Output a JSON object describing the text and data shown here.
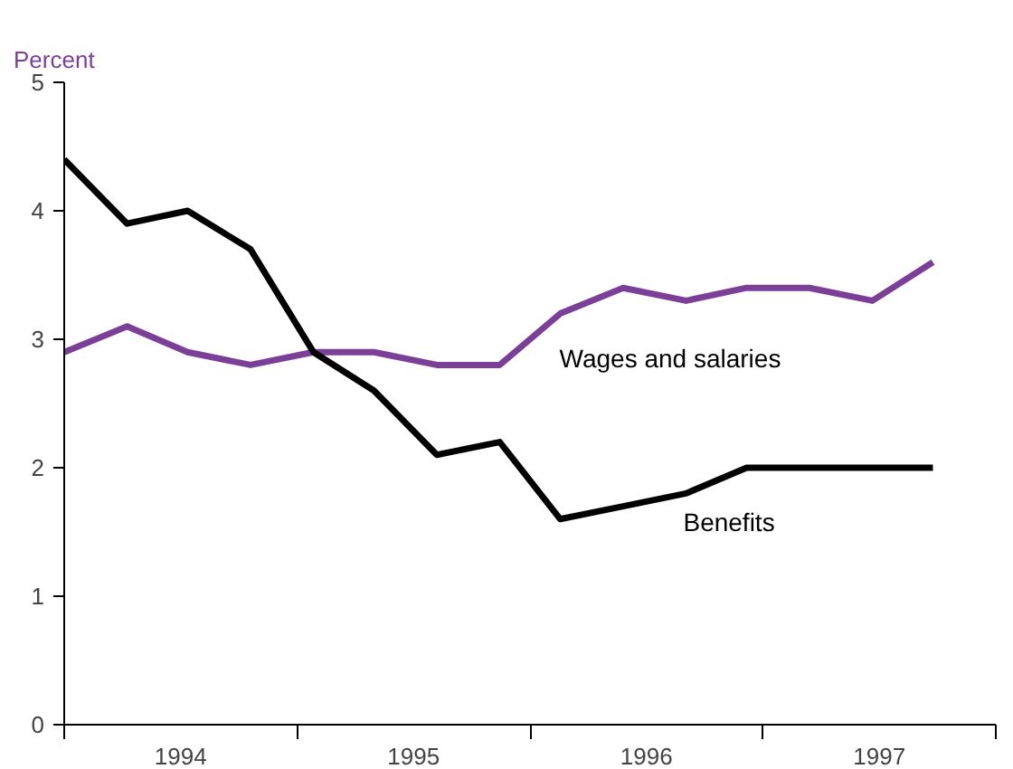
{
  "chart_data": {
    "type": "line",
    "ylabel": "Percent",
    "x": [
      1994.0,
      1994.27,
      1994.53,
      1994.8,
      1995.07,
      1995.33,
      1995.6,
      1995.87,
      1996.13,
      1996.4,
      1996.67,
      1996.93,
      1997.2,
      1997.47,
      1997.73
    ],
    "series": [
      {
        "name": "Wages and salaries",
        "color": "#7b3f98",
        "values": [
          2.9,
          3.1,
          2.9,
          2.8,
          2.9,
          2.9,
          2.8,
          2.8,
          3.2,
          3.4,
          3.3,
          3.4,
          3.4,
          3.3,
          3.6
        ]
      },
      {
        "name": "Benefits",
        "color": "#000000",
        "values": [
          4.4,
          3.9,
          4.0,
          3.7,
          2.9,
          2.6,
          2.1,
          2.2,
          1.6,
          1.7,
          1.8,
          2.0,
          2.0,
          2.0,
          2.0
        ]
      }
    ],
    "xlim": [
      1994,
      1998
    ],
    "xticks": [
      {
        "value": 1994,
        "label": null
      },
      {
        "value": 1994.5,
        "label": "1994"
      },
      {
        "value": 1995,
        "label": null
      },
      {
        "value": 1995.5,
        "label": "1995"
      },
      {
        "value": 1996,
        "label": null
      },
      {
        "value": 1996.5,
        "label": "1996"
      },
      {
        "value": 1997,
        "label": null
      },
      {
        "value": 1997.5,
        "label": "1997"
      },
      {
        "value": 1998,
        "label": null
      }
    ],
    "ylim": [
      0,
      5
    ],
    "yticks": [
      0,
      1,
      2,
      3,
      4,
      5
    ],
    "grid": false,
    "marker": "none",
    "line_style": "solid"
  }
}
